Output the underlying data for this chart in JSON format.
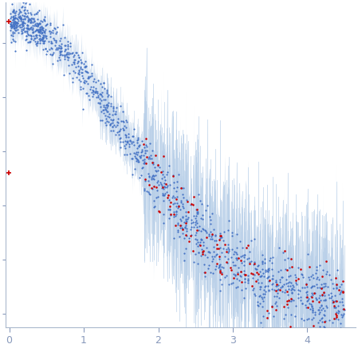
{
  "title": "",
  "xlabel": "",
  "ylabel": "",
  "xlim": [
    -0.05,
    4.65
  ],
  "ylim": [
    -0.005,
    0.115
  ],
  "dot_color_main": "#4472c4",
  "dot_color_outlier": "#cc0000",
  "error_color": "#b8cfe8",
  "background_color": "#ffffff",
  "spine_color": "#aab8cc",
  "tick_color": "#8899bb",
  "dot_size_main": 2.5,
  "dot_size_outlier": 3.5,
  "xticks": [
    0,
    1,
    2,
    3,
    4
  ],
  "seed": 12345
}
